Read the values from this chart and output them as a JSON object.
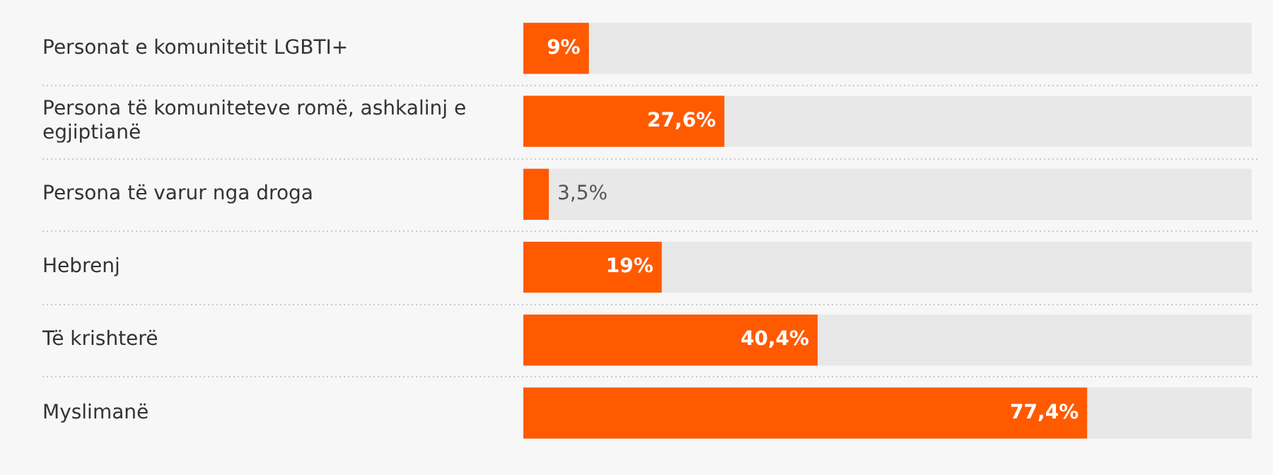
{
  "chart_data": {
    "type": "bar",
    "orientation": "horizontal",
    "categories": [
      "Personat e komunitetit LGBTI+",
      "Persona të komuniteteve romë, ashkalinj e egjiptianë",
      "Persona të varur nga droga",
      "Hebrenj",
      "Të krishterë",
      "Myslimanë"
    ],
    "values": [
      9,
      27.6,
      3.5,
      19,
      40.4,
      77.4
    ],
    "value_labels": [
      "9%",
      "27,6%",
      "3,5%",
      "19%",
      "40,4%",
      "77,4%"
    ],
    "color": "#ff5a00",
    "xlim": [
      0,
      100
    ],
    "tick_labels": false,
    "grid": "y",
    "legend": false
  }
}
